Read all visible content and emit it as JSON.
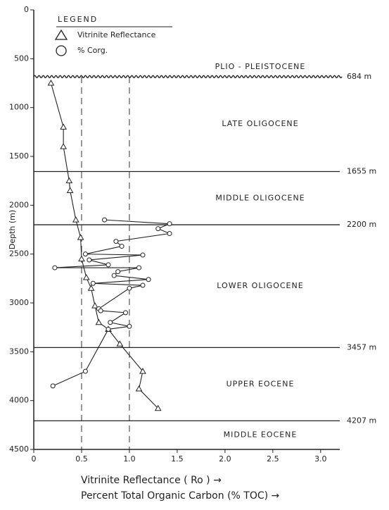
{
  "chart_data": {
    "type": "scatter",
    "x_label": "Vitrinite Reflectance ( Ro ) →",
    "x_label_2": "Percent Total Organic Carbon (% TOC) →",
    "y_label": "Depth (m)",
    "legend_title": "LEGEND",
    "xlim": [
      0,
      3.2
    ],
    "ylim": [
      0,
      4500
    ],
    "y_inverted": true,
    "xticks": [
      0,
      0.5,
      {
        "value": 1,
        "label": "1.0"
      },
      1.5,
      {
        "value": 2,
        "label": "2.0"
      },
      2.5,
      {
        "value": 3,
        "label": "3.0"
      }
    ],
    "yticks": [
      0,
      500,
      1000,
      1500,
      2000,
      2500,
      3000,
      3500,
      4000,
      4500
    ],
    "reference_x": [
      0.5,
      1
    ],
    "boundaries": [
      {
        "value": 684,
        "label": "684 m"
      },
      {
        "value": 1655,
        "label": "1655 m"
      },
      {
        "value": 2200,
        "label": "2200 m"
      },
      {
        "value": 3457,
        "label": "3457 m"
      },
      {
        "value": 4207,
        "label": "4207 m"
      }
    ],
    "formations": [
      "PLIO - PLEISTOCENE",
      "LATE OLIGOCENE",
      "MIDDLE OLIGOCENE",
      "LOWER OLIGOCENE",
      "UPPER EOCENE",
      "MIDDLE EOCENE"
    ],
    "series": [
      {
        "name": "Vitrinite Reflectance",
        "marker": "triangle",
        "color": "#222",
        "x": [
          0.18,
          0.31,
          0.31,
          0.37,
          0.38,
          0.44,
          0.49,
          0.5,
          0.55,
          0.6,
          0.64,
          0.68,
          0.78,
          0.9,
          1.14,
          1.1,
          1.3
        ],
        "values": [
          750,
          1200,
          1400,
          1750,
          1850,
          2150,
          2330,
          2550,
          2740,
          2850,
          3030,
          3200,
          3270,
          3420,
          3700,
          3880,
          4080
        ]
      },
      {
        "name": "% Corg.",
        "marker": "circle",
        "color": "#222",
        "x": [
          0.74,
          1.42,
          1.3,
          1.42,
          0.86,
          0.92,
          0.54,
          1.14,
          0.58,
          0.78,
          0.22,
          1.1,
          0.88,
          0.84,
          1.2,
          0.62,
          1.14,
          1.0,
          0.68,
          0.7,
          0.96,
          0.8,
          1.0,
          0.78,
          0.54,
          0.2
        ],
        "values": [
          2150,
          2190,
          2240,
          2290,
          2370,
          2420,
          2500,
          2510,
          2560,
          2610,
          2640,
          2640,
          2680,
          2720,
          2760,
          2800,
          2820,
          2850,
          3060,
          3080,
          3100,
          3200,
          3240,
          3270,
          3700,
          3850
        ]
      }
    ]
  }
}
